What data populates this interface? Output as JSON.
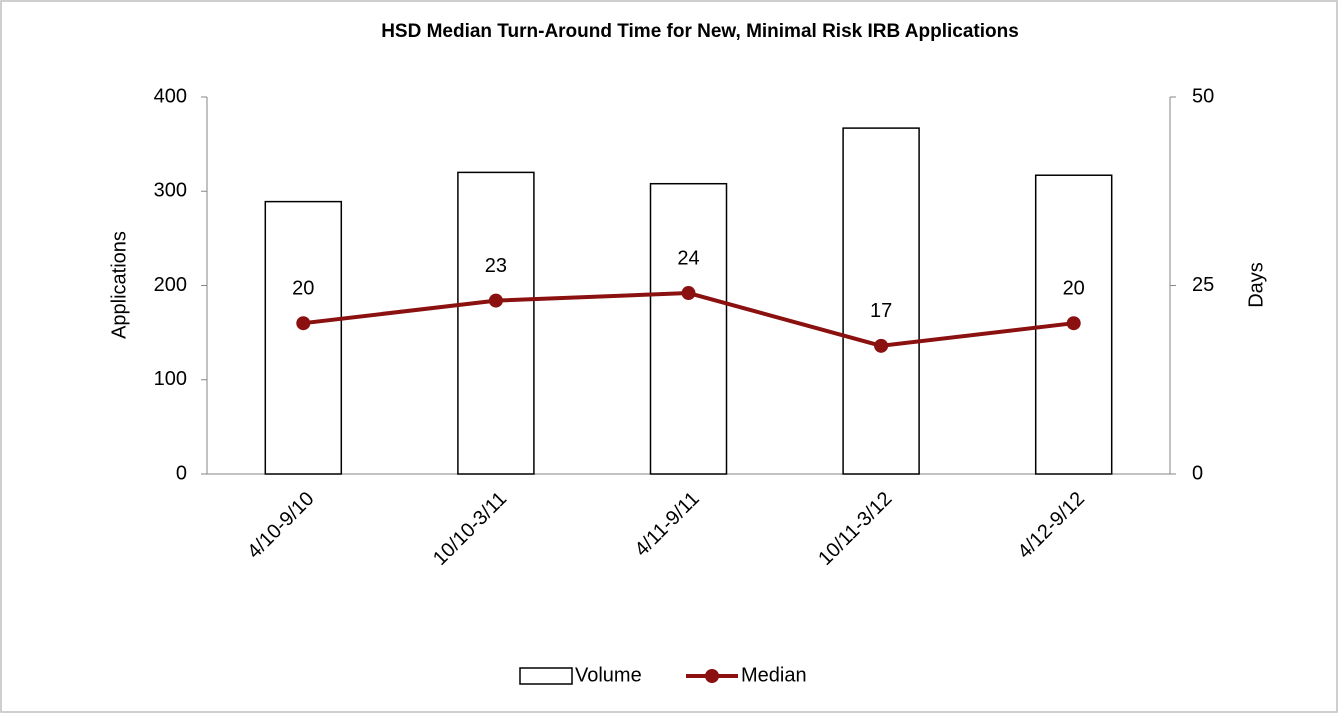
{
  "chart_data": {
    "type": "bar",
    "title": "HSD Median Turn-Around Time for New, Minimal Risk IRB Applications",
    "categories": [
      "4/10-9/10",
      "10/10-3/11",
      "4/11-9/11",
      "10/11-3/12",
      "4/12-9/12"
    ],
    "series": [
      {
        "name": "Volume",
        "type": "bar",
        "color": "#ffffff",
        "edgecolor": "#000000",
        "values": [
          289,
          320,
          308,
          367,
          317
        ]
      },
      {
        "name": "Median",
        "type": "line",
        "axis": "y2",
        "color": "#8b1010",
        "values": [
          20,
          23,
          24,
          17,
          20
        ],
        "data_labels": true
      }
    ],
    "ylabel": "Applications",
    "y2label": "Days",
    "ylim": [
      0,
      400
    ],
    "yticks": [
      0,
      100,
      200,
      300,
      400
    ],
    "y2lim": [
      0,
      50
    ],
    "y2ticks": [
      0,
      25,
      50
    ],
    "legend": "bottom"
  }
}
